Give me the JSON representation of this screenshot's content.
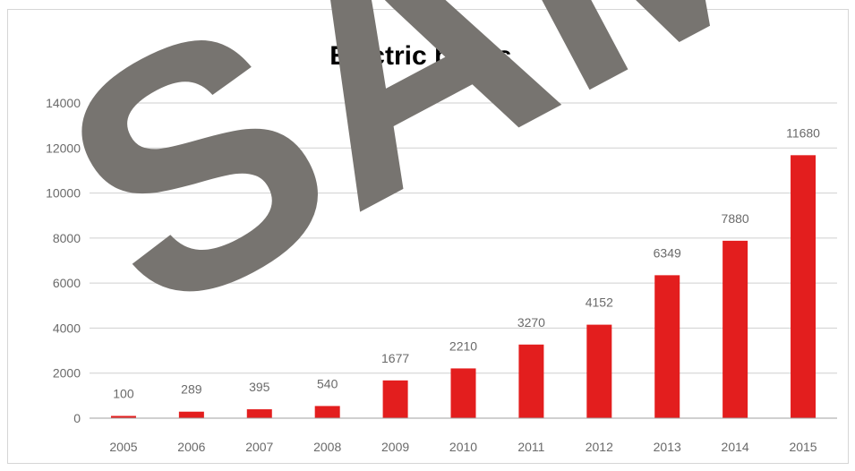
{
  "chart_data": {
    "type": "bar",
    "title": "Electric buses",
    "xlabel": "",
    "ylabel": "",
    "categories": [
      "2005",
      "2006",
      "2007",
      "2008",
      "2009",
      "2010",
      "2011",
      "2012",
      "2013",
      "2014",
      "2015"
    ],
    "values": [
      100,
      289,
      395,
      540,
      1677,
      2210,
      3270,
      4152,
      6349,
      7880,
      11680
    ],
    "ylim": [
      0,
      14000
    ],
    "yticks": [
      0,
      2000,
      4000,
      6000,
      8000,
      10000,
      12000,
      14000
    ],
    "grid": true,
    "legend": "none",
    "bar_color": "#e31e1e",
    "grid_color": "#cfcfcf"
  },
  "watermark": {
    "text": "SAMPLE",
    "color": "#777470"
  }
}
